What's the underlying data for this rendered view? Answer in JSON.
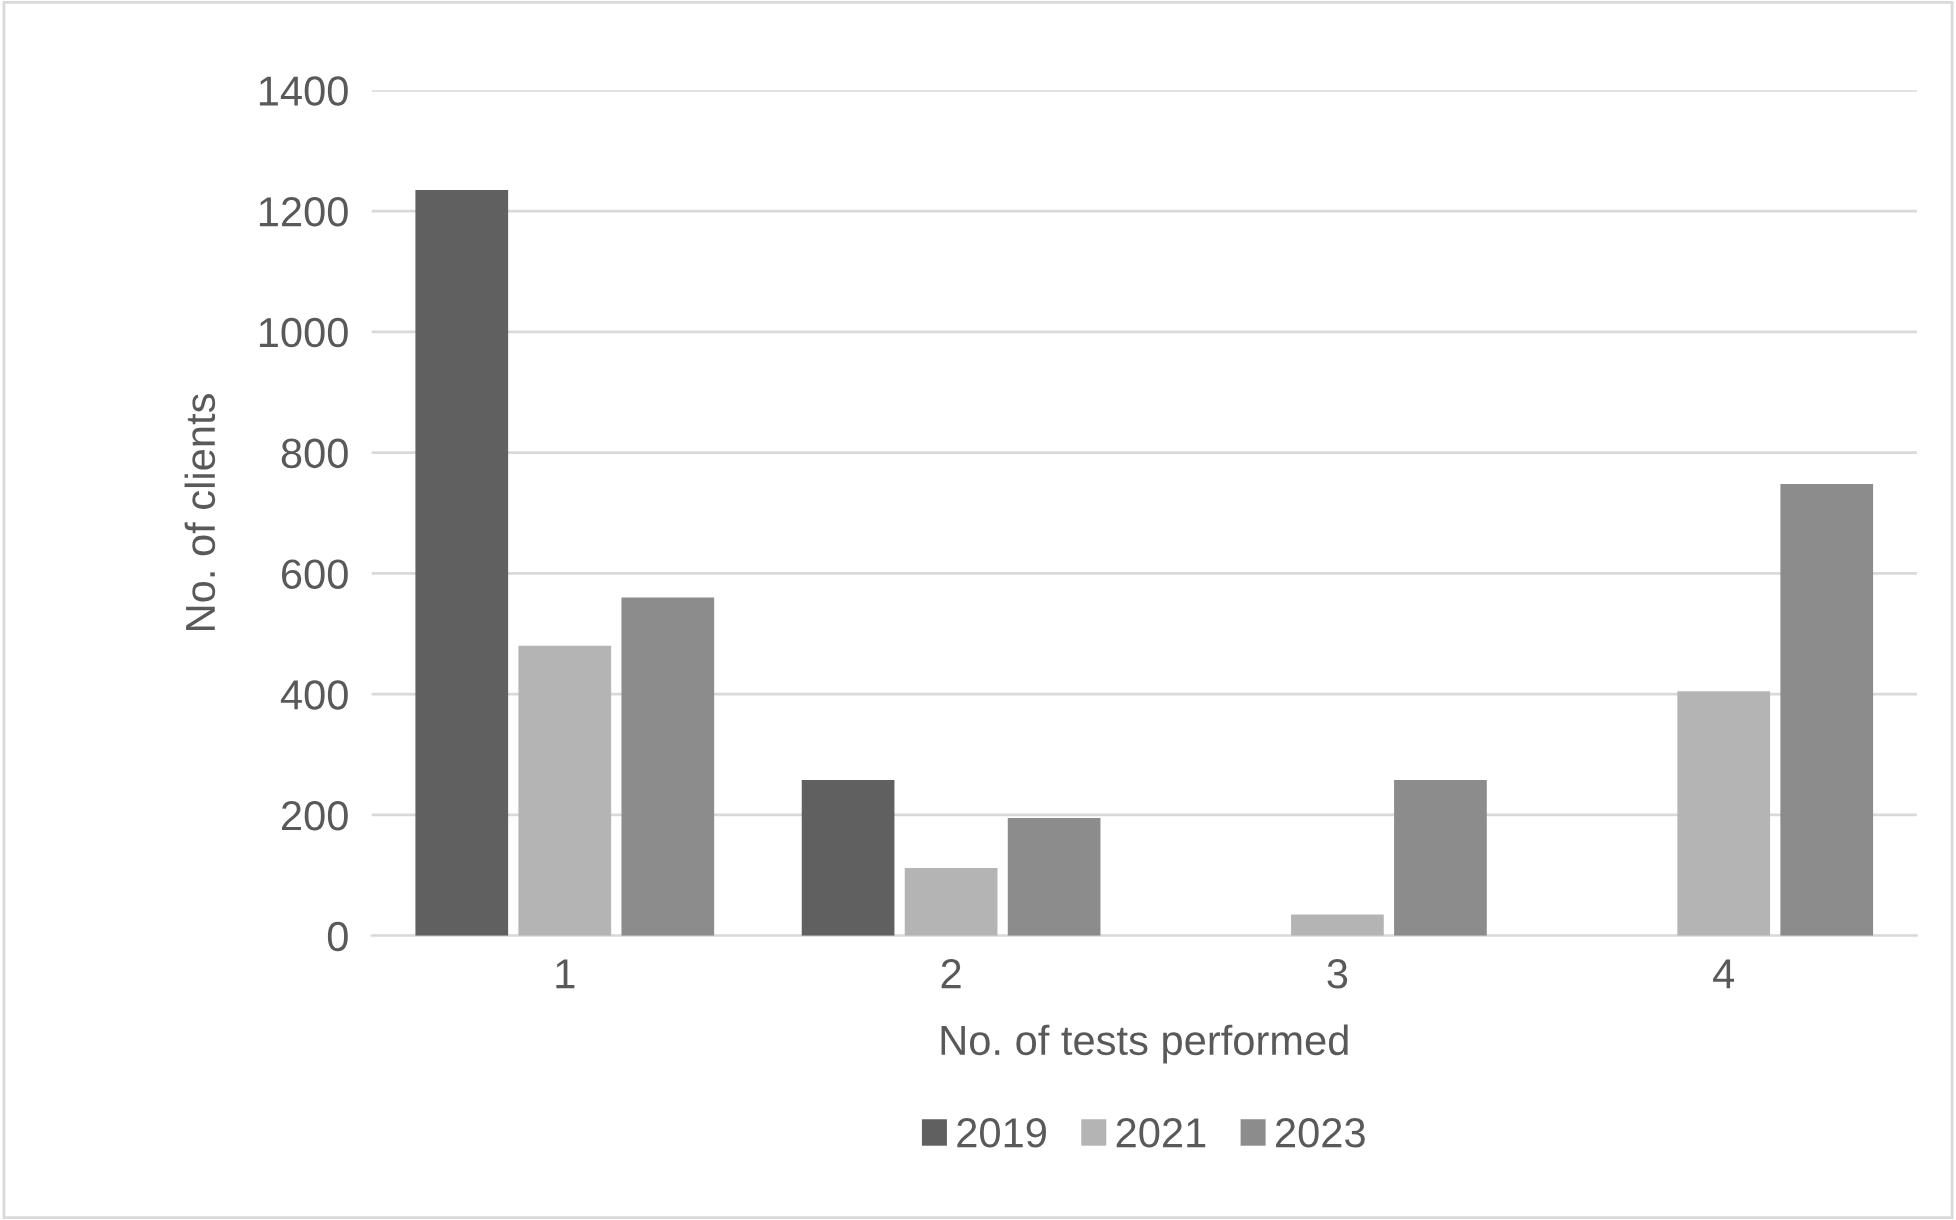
{
  "chart_data": {
    "type": "bar",
    "xlabel": "No. of tests performed",
    "ylabel": "No. of clients",
    "categories": [
      "1",
      "2",
      "3",
      "4"
    ],
    "series": [
      {
        "name": "2019",
        "color": "#606060",
        "values": [
          1235,
          258,
          0,
          0
        ]
      },
      {
        "name": "2021",
        "color": "#b4b4b4",
        "values": [
          480,
          112,
          35,
          405
        ]
      },
      {
        "name": "2023",
        "color": "#8c8c8c",
        "values": [
          560,
          195,
          258,
          748
        ]
      }
    ],
    "ylim": [
      0,
      1400
    ],
    "yticks": [
      0,
      200,
      400,
      600,
      800,
      1000,
      1200,
      1400
    ],
    "grid": "y",
    "legend": "bottom"
  }
}
